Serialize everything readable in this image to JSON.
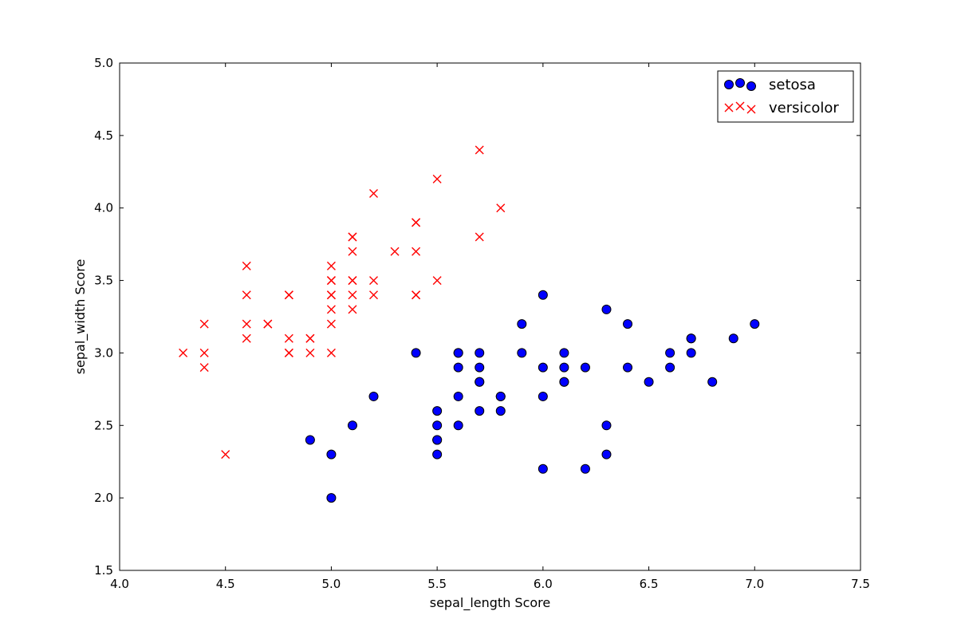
{
  "chart_data": {
    "type": "scatter",
    "xlabel": "sepal_length Score",
    "ylabel": "sepal_width Score",
    "xlim": [
      4.0,
      7.5
    ],
    "ylim": [
      1.5,
      5.0
    ],
    "xticks": [
      "4.0",
      "4.5",
      "5.0",
      "5.5",
      "6.0",
      "6.5",
      "7.0",
      "7.5"
    ],
    "yticks": [
      "1.5",
      "2.0",
      "2.5",
      "3.0",
      "3.5",
      "4.0",
      "4.5",
      "5.0"
    ],
    "grid": false,
    "legend_position": "top-right",
    "series": [
      {
        "name": "setosa",
        "marker": "circle",
        "color": "#0000ff",
        "edgecolor": "#000000",
        "points": [
          [
            4.9,
            2.4
          ],
          [
            5.0,
            2.3
          ],
          [
            5.0,
            2.0
          ],
          [
            5.1,
            2.5
          ],
          [
            5.2,
            2.7
          ],
          [
            5.4,
            3.0
          ],
          [
            5.5,
            2.6
          ],
          [
            5.5,
            2.5
          ],
          [
            5.5,
            2.4
          ],
          [
            5.5,
            2.4
          ],
          [
            5.5,
            2.3
          ],
          [
            5.6,
            3.0
          ],
          [
            5.6,
            3.0
          ],
          [
            5.6,
            2.9
          ],
          [
            5.6,
            2.7
          ],
          [
            5.6,
            2.5
          ],
          [
            5.7,
            3.0
          ],
          [
            5.7,
            2.9
          ],
          [
            5.7,
            2.8
          ],
          [
            5.7,
            2.8
          ],
          [
            5.7,
            2.6
          ],
          [
            5.8,
            2.7
          ],
          [
            5.8,
            2.7
          ],
          [
            5.8,
            2.6
          ],
          [
            5.9,
            3.2
          ],
          [
            5.9,
            3.0
          ],
          [
            6.0,
            3.4
          ],
          [
            6.0,
            2.9
          ],
          [
            6.0,
            2.7
          ],
          [
            6.0,
            2.2
          ],
          [
            6.1,
            3.0
          ],
          [
            6.1,
            2.9
          ],
          [
            6.1,
            2.8
          ],
          [
            6.1,
            2.8
          ],
          [
            6.2,
            2.9
          ],
          [
            6.2,
            2.2
          ],
          [
            6.3,
            3.3
          ],
          [
            6.3,
            2.5
          ],
          [
            6.3,
            2.3
          ],
          [
            6.4,
            3.2
          ],
          [
            6.4,
            2.9
          ],
          [
            6.5,
            2.8
          ],
          [
            6.6,
            3.0
          ],
          [
            6.6,
            2.9
          ],
          [
            6.7,
            3.1
          ],
          [
            6.7,
            3.1
          ],
          [
            6.7,
            3.0
          ],
          [
            6.8,
            2.8
          ],
          [
            6.9,
            3.1
          ],
          [
            7.0,
            3.2
          ]
        ]
      },
      {
        "name": "versicolor",
        "marker": "x",
        "color": "#ff0000",
        "points": [
          [
            4.3,
            3.0
          ],
          [
            4.4,
            3.2
          ],
          [
            4.4,
            3.0
          ],
          [
            4.4,
            2.9
          ],
          [
            4.5,
            2.3
          ],
          [
            4.6,
            3.6
          ],
          [
            4.6,
            3.4
          ],
          [
            4.6,
            3.2
          ],
          [
            4.6,
            3.1
          ],
          [
            4.7,
            3.2
          ],
          [
            4.7,
            3.2
          ],
          [
            4.8,
            3.4
          ],
          [
            4.8,
            3.4
          ],
          [
            4.8,
            3.1
          ],
          [
            4.8,
            3.0
          ],
          [
            4.8,
            3.0
          ],
          [
            4.9,
            3.1
          ],
          [
            4.9,
            3.1
          ],
          [
            4.9,
            3.0
          ],
          [
            5.0,
            3.6
          ],
          [
            5.0,
            3.5
          ],
          [
            5.0,
            3.5
          ],
          [
            5.0,
            3.4
          ],
          [
            5.0,
            3.4
          ],
          [
            5.0,
            3.3
          ],
          [
            5.0,
            3.2
          ],
          [
            5.0,
            3.0
          ],
          [
            5.1,
            3.8
          ],
          [
            5.1,
            3.8
          ],
          [
            5.1,
            3.7
          ],
          [
            5.1,
            3.5
          ],
          [
            5.1,
            3.5
          ],
          [
            5.1,
            3.4
          ],
          [
            5.1,
            3.3
          ],
          [
            5.2,
            4.1
          ],
          [
            5.2,
            3.5
          ],
          [
            5.2,
            3.4
          ],
          [
            5.3,
            3.7
          ],
          [
            5.4,
            3.9
          ],
          [
            5.4,
            3.9
          ],
          [
            5.4,
            3.7
          ],
          [
            5.4,
            3.4
          ],
          [
            5.4,
            3.4
          ],
          [
            5.5,
            4.2
          ],
          [
            5.5,
            3.5
          ],
          [
            5.7,
            4.4
          ],
          [
            5.7,
            3.8
          ],
          [
            5.8,
            4.0
          ]
        ]
      }
    ]
  }
}
